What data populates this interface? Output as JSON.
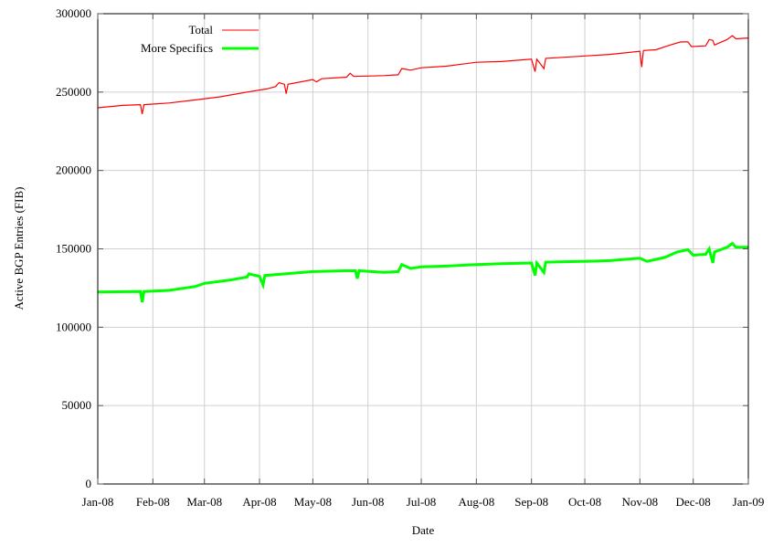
{
  "chart_data": {
    "type": "line",
    "title": "",
    "xlabel": "Date",
    "ylabel": "Active BGP Entries (FIB)",
    "xlim": [
      "2008-01-01",
      "2009-01-01"
    ],
    "ylim": [
      0,
      300000
    ],
    "grid": true,
    "legend_position": "top-left",
    "x_tick_labels": [
      "Jan-08",
      "Feb-08",
      "Mar-08",
      "Apr-08",
      "May-08",
      "Jun-08",
      "Jul-08",
      "Aug-08",
      "Sep-08",
      "Oct-08",
      "Nov-08",
      "Dec-08",
      "Jan-09"
    ],
    "x_tick_dates": [
      "2008-01-01",
      "2008-02-01",
      "2008-03-01",
      "2008-04-01",
      "2008-05-01",
      "2008-06-01",
      "2008-07-01",
      "2008-08-01",
      "2008-09-01",
      "2008-10-01",
      "2008-11-01",
      "2008-12-01",
      "2009-01-01"
    ],
    "y_ticks": [
      0,
      50000,
      100000,
      150000,
      200000,
      250000,
      300000
    ],
    "series": [
      {
        "name": "Total",
        "color": "#ff0000",
        "points": [
          [
            "2008-01-01",
            240000
          ],
          [
            "2008-01-15",
            241500
          ],
          [
            "2008-01-25",
            242000
          ],
          [
            "2008-01-26",
            236000
          ],
          [
            "2008-01-27",
            242000
          ],
          [
            "2008-02-10",
            243000
          ],
          [
            "2008-02-25",
            245000
          ],
          [
            "2008-03-10",
            247000
          ],
          [
            "2008-03-25",
            250000
          ],
          [
            "2008-04-05",
            252000
          ],
          [
            "2008-04-10",
            253500
          ],
          [
            "2008-04-12",
            256000
          ],
          [
            "2008-04-15",
            255000
          ],
          [
            "2008-04-16",
            249000
          ],
          [
            "2008-04-17",
            255000
          ],
          [
            "2008-05-01",
            258000
          ],
          [
            "2008-05-03",
            256500
          ],
          [
            "2008-05-06",
            258500
          ],
          [
            "2008-05-20",
            259500
          ],
          [
            "2008-05-22",
            262000
          ],
          [
            "2008-05-24",
            260000
          ],
          [
            "2008-06-10",
            260500
          ],
          [
            "2008-06-18",
            261000
          ],
          [
            "2008-06-20",
            265000
          ],
          [
            "2008-06-25",
            264000
          ],
          [
            "2008-07-01",
            265500
          ],
          [
            "2008-07-15",
            266500
          ],
          [
            "2008-08-01",
            269000
          ],
          [
            "2008-08-15",
            269500
          ],
          [
            "2008-09-01",
            271000
          ],
          [
            "2008-09-03",
            263000
          ],
          [
            "2008-09-04",
            271000
          ],
          [
            "2008-09-08",
            265000
          ],
          [
            "2008-09-09",
            271500
          ],
          [
            "2008-10-01",
            273000
          ],
          [
            "2008-10-15",
            274000
          ],
          [
            "2008-11-01",
            276000
          ],
          [
            "2008-11-02",
            266000
          ],
          [
            "2008-11-03",
            276500
          ],
          [
            "2008-11-10",
            277000
          ],
          [
            "2008-11-18",
            280000
          ],
          [
            "2008-11-24",
            282000
          ],
          [
            "2008-11-28",
            282000
          ],
          [
            "2008-11-30",
            279000
          ],
          [
            "2008-12-08",
            279500
          ],
          [
            "2008-12-10",
            283500
          ],
          [
            "2008-12-12",
            283000
          ],
          [
            "2008-12-13",
            280000
          ],
          [
            "2008-12-15",
            281000
          ],
          [
            "2008-12-20",
            283500
          ],
          [
            "2008-12-23",
            286000
          ],
          [
            "2008-12-25",
            284000
          ],
          [
            "2009-01-01",
            284500
          ]
        ]
      },
      {
        "name": "More Specifics",
        "color": "#00ff00",
        "points": [
          [
            "2008-01-01",
            122500
          ],
          [
            "2008-01-25",
            122800
          ],
          [
            "2008-01-26",
            116000
          ],
          [
            "2008-01-27",
            122800
          ],
          [
            "2008-02-10",
            123500
          ],
          [
            "2008-02-25",
            126000
          ],
          [
            "2008-03-01",
            128000
          ],
          [
            "2008-03-15",
            130000
          ],
          [
            "2008-03-25",
            132000
          ],
          [
            "2008-03-26",
            134000
          ],
          [
            "2008-04-01",
            132500
          ],
          [
            "2008-04-03",
            127000
          ],
          [
            "2008-04-04",
            133000
          ],
          [
            "2008-04-20",
            134500
          ],
          [
            "2008-05-01",
            135500
          ],
          [
            "2008-05-20",
            136000
          ],
          [
            "2008-05-25",
            136000
          ],
          [
            "2008-05-26",
            131000
          ],
          [
            "2008-05-27",
            136000
          ],
          [
            "2008-06-10",
            135000
          ],
          [
            "2008-06-18",
            135500
          ],
          [
            "2008-06-20",
            140000
          ],
          [
            "2008-06-25",
            137500
          ],
          [
            "2008-07-01",
            138500
          ],
          [
            "2008-07-15",
            139000
          ],
          [
            "2008-08-01",
            140000
          ],
          [
            "2008-08-15",
            140500
          ],
          [
            "2008-09-01",
            141000
          ],
          [
            "2008-09-03",
            133000
          ],
          [
            "2008-09-04",
            141000
          ],
          [
            "2008-09-08",
            135000
          ],
          [
            "2008-09-09",
            141500
          ],
          [
            "2008-10-01",
            142000
          ],
          [
            "2008-10-15",
            142500
          ],
          [
            "2008-11-01",
            144000
          ],
          [
            "2008-11-05",
            142000
          ],
          [
            "2008-11-15",
            144500
          ],
          [
            "2008-11-22",
            148000
          ],
          [
            "2008-11-28",
            149500
          ],
          [
            "2008-12-01",
            146000
          ],
          [
            "2008-12-08",
            146500
          ],
          [
            "2008-12-10",
            150000
          ],
          [
            "2008-12-12",
            141000
          ],
          [
            "2008-12-13",
            148000
          ],
          [
            "2008-12-20",
            151000
          ],
          [
            "2008-12-23",
            153500
          ],
          [
            "2008-12-25",
            151000
          ],
          [
            "2009-01-01",
            151000
          ]
        ]
      }
    ]
  }
}
